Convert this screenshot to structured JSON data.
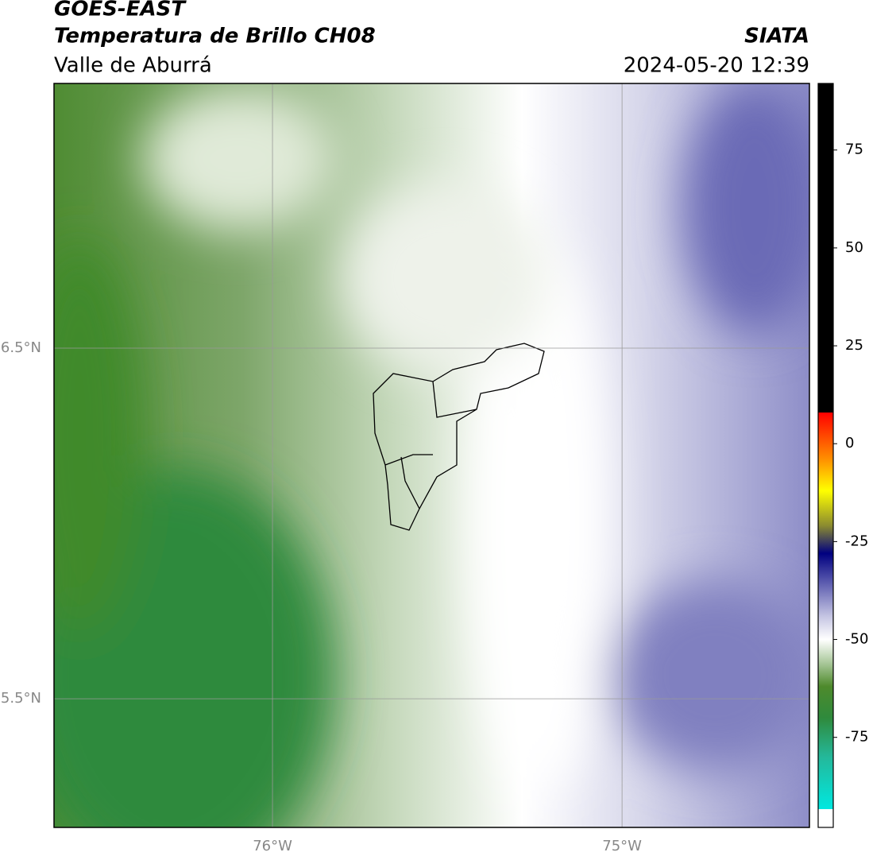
{
  "header": {
    "title": "GOES-EAST",
    "subtitle": "Temperatura de Brillo CH08",
    "region": "Valle de Aburrá",
    "source": "SIATA",
    "datetime": "2024-05-20 12:39"
  },
  "map": {
    "xlim": [
      -76.625,
      -74.464
    ],
    "ylim": [
      5.133,
      7.255
    ],
    "xticks": [
      {
        "value": -76,
        "label": "76°W"
      },
      {
        "value": -75,
        "label": "75°W"
      }
    ],
    "yticks": [
      {
        "value": 5.5,
        "label": "5.5°N"
      },
      {
        "value": 6.5,
        "label": "6.5°N"
      }
    ],
    "grid": true,
    "colorbar": {
      "range": [
        -98,
        92
      ],
      "ticks": [
        75,
        50,
        25,
        0,
        -25,
        -50,
        -75
      ],
      "stops": [
        {
          "value": -98,
          "color": "#ffffff"
        },
        {
          "value": -93.3,
          "color": "#ffffff"
        },
        {
          "value": -93.3,
          "color": "#00e8e0"
        },
        {
          "value": -80,
          "color": "#24b89a"
        },
        {
          "value": -70,
          "color": "#2f8a3c"
        },
        {
          "value": -62,
          "color": "#4e8a2c"
        },
        {
          "value": -56,
          "color": "#a9c89a"
        },
        {
          "value": -50,
          "color": "#ffffff"
        },
        {
          "value": -44,
          "color": "#c4c4e2"
        },
        {
          "value": -36,
          "color": "#6262b2"
        },
        {
          "value": -28,
          "color": "#000080"
        },
        {
          "value": -21,
          "color": "#8a8a30"
        },
        {
          "value": -12,
          "color": "#ffff00"
        },
        {
          "value": -4,
          "color": "#ff9000"
        },
        {
          "value": 8,
          "color": "#ff0000"
        },
        {
          "value": 8,
          "color": "#000000"
        },
        {
          "value": 92,
          "color": "#000000"
        }
      ]
    }
  }
}
